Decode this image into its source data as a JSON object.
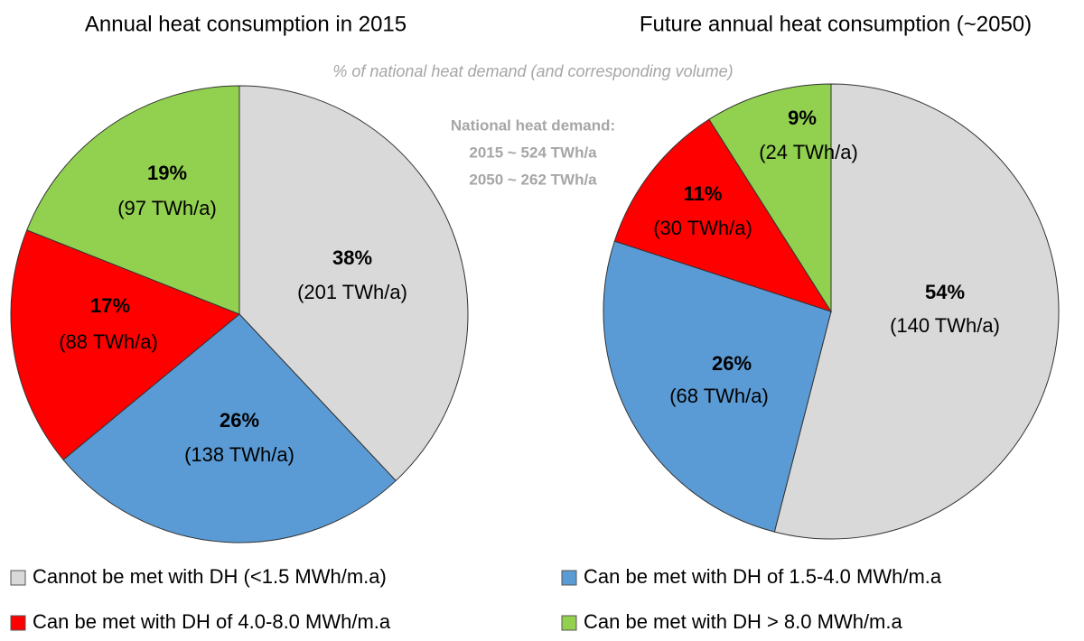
{
  "chart_data": [
    {
      "type": "pie",
      "title": "Annual heat consumption in 2015",
      "categories": [
        "Cannot be met with DH  (<1.5 MWh/m.a)",
        "Can be met with DH of 1.5-4.0 MWh/m.a",
        "Can be met with DH  of 4.0-8.0 MWh/m.a",
        "Can be met with DH > 8.0 MWh/m.a"
      ],
      "colors": [
        "#d9d9d9",
        "#5b9bd5",
        "#ff0000",
        "#92d050"
      ],
      "values": [
        38,
        26,
        17,
        19
      ],
      "value_labels": [
        "38%",
        "26%",
        "17%",
        "19%"
      ],
      "volumes": [
        201,
        138,
        88,
        97
      ],
      "volume_labels": [
        "(201 TWh/a)",
        "(138 TWh/a)",
        "(88 TWh/a)",
        "(97 TWh/a)"
      ]
    },
    {
      "type": "pie",
      "title": "Future annual heat consumption (~2050)",
      "categories": [
        "Cannot be met with DH  (<1.5 MWh/m.a)",
        "Can be met with DH of 1.5-4.0 MWh/m.a",
        "Can be met with DH  of 4.0-8.0 MWh/m.a",
        "Can be met with DH > 8.0 MWh/m.a"
      ],
      "colors": [
        "#d9d9d9",
        "#5b9bd5",
        "#ff0000",
        "#92d050"
      ],
      "values": [
        54,
        26,
        11,
        9
      ],
      "value_labels": [
        "54%",
        "26%",
        "11%",
        "9%"
      ],
      "volumes": [
        140,
        68,
        30,
        24
      ],
      "volume_labels": [
        "(140 TWh/a)",
        "(68 TWh/a)",
        "(30 TWh/a)",
        "(24 TWh/a)"
      ]
    }
  ],
  "subtitle": "% of national heat demand (and corresponding volume)",
  "annotation": [
    "National heat demand:",
    "2015 ~ 524 TWh/a",
    "2050 ~ 262 TWh/a"
  ]
}
